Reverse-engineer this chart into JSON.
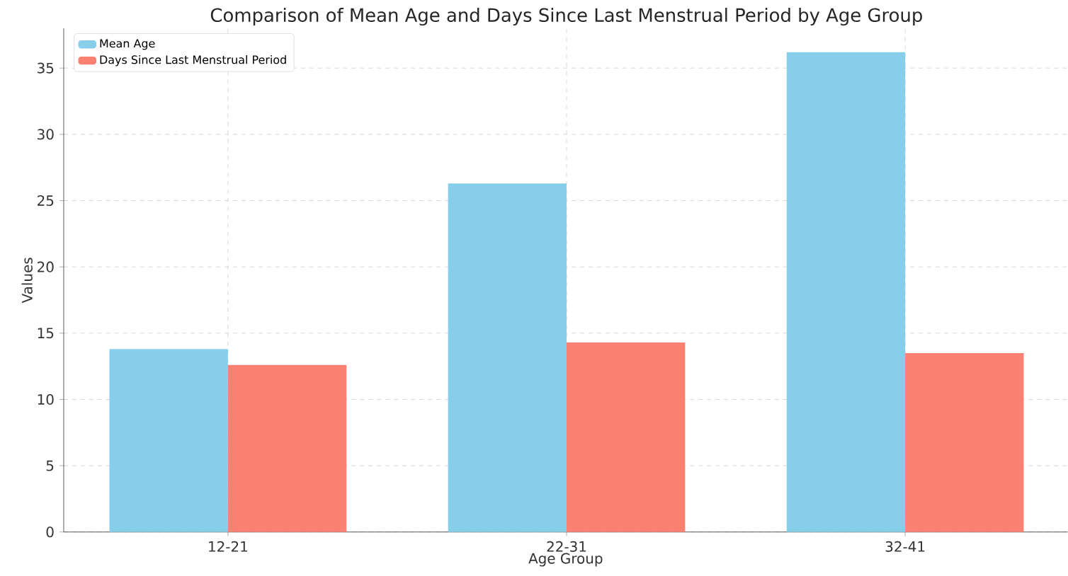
{
  "chart_data": {
    "type": "bar",
    "title": "Comparison of Mean Age and Days Since Last Menstrual Period by Age Group",
    "xlabel": "Age Group",
    "ylabel": "Values",
    "categories": [
      "12-21",
      "22-31",
      "32-41"
    ],
    "series": [
      {
        "name": "Mean Age",
        "color": "#87ceeb",
        "values": [
          13.8,
          26.3,
          36.2
        ]
      },
      {
        "name": "Days Since Last Menstrual Period",
        "color": "#fa8072",
        "values": [
          12.6,
          14.3,
          13.5
        ]
      }
    ],
    "ylim": [
      0,
      38
    ],
    "yticks": [
      0,
      5,
      10,
      15,
      20,
      25,
      30,
      35
    ],
    "grid": true,
    "legend": "top left"
  }
}
